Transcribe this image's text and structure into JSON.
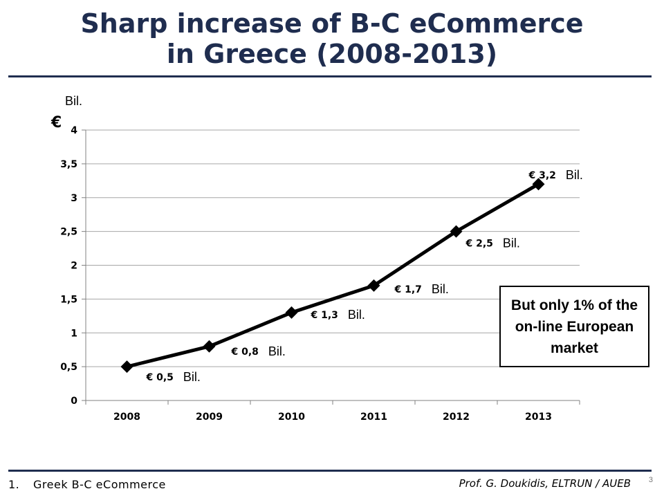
{
  "slide": {
    "title_line1": "Sharp increase of B-C eCommerce",
    "title_line2": "in Greece (2008-2013)",
    "callout": "But only 1% of the on-line European market",
    "footer_number": "1.",
    "footer_left": "Greek B-C eCommerce",
    "footer_right": "Prof. G. Doukidis, ELTRUN / AUEB",
    "page_number": "3"
  },
  "colors": {
    "title": "#1f2d4f",
    "rule": "#1f2d4f",
    "line": "#000000",
    "grid": "#a6a6a6"
  },
  "chart_data": {
    "type": "line",
    "title": "",
    "xlabel": "",
    "ylabel": "€",
    "unit_label": "Bil.",
    "categories": [
      "2008",
      "2009",
      "2010",
      "2011",
      "2012",
      "2013"
    ],
    "values": [
      0.5,
      0.8,
      1.3,
      1.7,
      2.5,
      3.2
    ],
    "data_labels": [
      "€ 0,5",
      "€ 0,8",
      "€ 1,3",
      "€ 1,7",
      "€ 2,5",
      "€ 3,2"
    ],
    "data_label_suffix": "Bil.",
    "y_ticks": [
      "0",
      "0,5",
      "1",
      "1,5",
      "2",
      "2,5",
      "3",
      "3,5",
      "4"
    ],
    "ylim": [
      0,
      4
    ],
    "grid": true,
    "legend": "none",
    "marker": "diamond"
  }
}
